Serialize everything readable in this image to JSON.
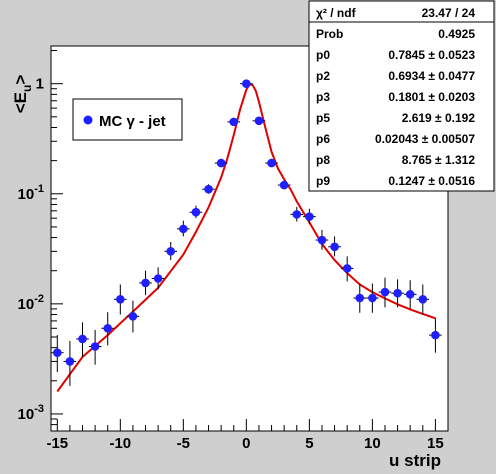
{
  "chart_data": {
    "type": "scatter",
    "title": "",
    "xlabel": "u strip",
    "ylabel": "<E_u>",
    "xlim": [
      -15.5,
      16
    ],
    "ylim": [
      0.0007,
      2.2
    ],
    "y_scale": "log",
    "grid": false,
    "legend_position": "top-left",
    "x_ticks": [
      "-15",
      "-10",
      "-5",
      "0",
      "5",
      "10",
      "15"
    ],
    "y_ticks": [
      "10-3",
      "10-2",
      "10-1",
      "1"
    ],
    "series": [
      {
        "name": "MC γ - jet",
        "color": "#1f1fff",
        "x": [
          -15,
          -14,
          -13,
          -12,
          -11,
          -10,
          -9,
          -8,
          -7,
          -6,
          -5,
          -4,
          -3,
          -2,
          -1,
          0,
          1,
          2,
          3,
          4,
          5,
          6,
          7,
          8,
          9,
          10,
          11,
          12,
          13,
          14,
          15
        ],
        "y": [
          0.0036,
          0.003,
          0.0048,
          0.0041,
          0.006,
          0.011,
          0.0077,
          0.0155,
          0.017,
          0.03,
          0.048,
          0.068,
          0.11,
          0.19,
          0.45,
          1.0,
          0.46,
          0.19,
          0.12,
          0.065,
          0.062,
          0.038,
          0.033,
          0.021,
          0.0113,
          0.0113,
          0.0128,
          0.0125,
          0.0122,
          0.011,
          0.0052
        ],
        "y_err_low": [
          0.0012,
          0.0012,
          0.0015,
          0.0013,
          0.0018,
          0.003,
          0.0022,
          0.0035,
          0.0035,
          0.005,
          0.007,
          0.008,
          0.01,
          0.015,
          0.03,
          0.04,
          0.03,
          0.015,
          0.01,
          0.009,
          0.009,
          0.007,
          0.006,
          0.005,
          0.003,
          0.003,
          0.0035,
          0.0032,
          0.0032,
          0.003,
          0.0016
        ],
        "y_err_high": [
          0.0016,
          0.0016,
          0.002,
          0.0017,
          0.0024,
          0.004,
          0.003,
          0.0045,
          0.0045,
          0.0065,
          0.009,
          0.01,
          0.012,
          0.018,
          0.035,
          0.045,
          0.035,
          0.018,
          0.012,
          0.011,
          0.011,
          0.009,
          0.008,
          0.006,
          0.004,
          0.004,
          0.0045,
          0.0042,
          0.0042,
          0.004,
          0.0022
        ]
      },
      {
        "name": "",
        "kind": "fit_curve",
        "color": "#e00000",
        "x": [
          -15,
          -13,
          -11,
          -9,
          -7,
          -5,
          -4,
          -3,
          -2,
          -1.5,
          -1,
          -0.5,
          0,
          0.25,
          0.5,
          0.75,
          1,
          1.5,
          2,
          2.5,
          3,
          3.5,
          4,
          5,
          6,
          7,
          8,
          9,
          10,
          11,
          12,
          13,
          14,
          15
        ],
        "y": [
          0.0016,
          0.0033,
          0.0052,
          0.0085,
          0.014,
          0.028,
          0.045,
          0.075,
          0.14,
          0.21,
          0.34,
          0.58,
          0.88,
          0.99,
          0.97,
          0.86,
          0.68,
          0.4,
          0.24,
          0.17,
          0.135,
          0.11,
          0.085,
          0.055,
          0.035,
          0.025,
          0.019,
          0.015,
          0.0128,
          0.0112,
          0.0099,
          0.0089,
          0.0081,
          0.0074
        ]
      }
    ]
  },
  "stats_box": [
    {
      "label": "χ² / ndf",
      "value": "23.47 / 24"
    },
    {
      "label": "Prob",
      "value": "0.4925"
    },
    {
      "label": "p0",
      "value": "0.7845 ± 0.0523"
    },
    {
      "label": "p2",
      "value": "0.6934 ± 0.0477"
    },
    {
      "label": "p3",
      "value": "0.1801 ± 0.0203"
    },
    {
      "label": "p5",
      "value": "2.619 ± 0.192"
    },
    {
      "label": "p6",
      "value": "0.02043 ± 0.00507"
    },
    {
      "label": "p8",
      "value": "8.765 ± 1.312"
    },
    {
      "label": "p9",
      "value": "0.1247 ± 0.0516"
    }
  ],
  "legend": {
    "label": "MC γ - jet"
  }
}
